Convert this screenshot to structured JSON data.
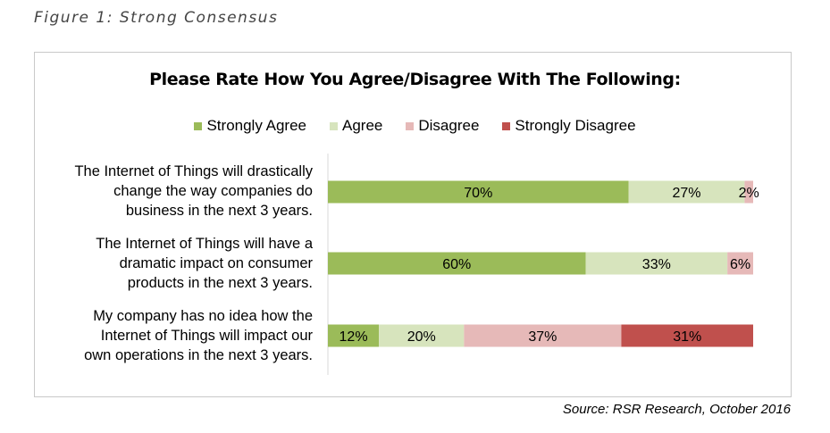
{
  "figure_caption": "Figure 1: Strong Consensus",
  "source": "Source: RSR Research, October 2016",
  "colors": {
    "strongly_agree": "#9bbb59",
    "agree": "#d7e4bd",
    "disagree": "#e6b9b8",
    "strongly_disagree": "#c0504d"
  },
  "chart_data": {
    "type": "bar",
    "orientation": "horizontal",
    "stacked": true,
    "title": "Please Rate How You Agree/Disagree With The Following:",
    "legend_position": "top",
    "categories": [
      "The Internet of Things will drastically change the way companies do business in the next 3 years.",
      "The Internet of Things will have a dramatic impact on consumer products in the next 3 years.",
      "My company has no idea how the Internet of Things will impact our own operations in the next 3 years."
    ],
    "category_lines": [
      [
        "The Internet of Things will drastically",
        "change the way companies do",
        "business in the next 3 years."
      ],
      [
        "The Internet of Things will have a",
        "dramatic impact on consumer",
        "products in the next 3 years."
      ],
      [
        "My company has no idea how the",
        "Internet of Things will impact our",
        "own operations in the next 3 years."
      ]
    ],
    "series": [
      {
        "name": "Strongly Agree",
        "values": [
          70,
          60,
          12
        ],
        "labels": [
          "70%",
          "60%",
          "12%"
        ]
      },
      {
        "name": "Agree",
        "values": [
          27,
          33,
          20
        ],
        "labels": [
          "27%",
          "33%",
          "20%"
        ]
      },
      {
        "name": "Disagree",
        "values": [
          2,
          6,
          37
        ],
        "labels": [
          "2%",
          "6%",
          "37%"
        ]
      },
      {
        "name": "Strongly Disagree",
        "values": [
          0,
          0,
          31
        ],
        "labels": [
          "",
          "",
          "31%"
        ]
      }
    ]
  }
}
